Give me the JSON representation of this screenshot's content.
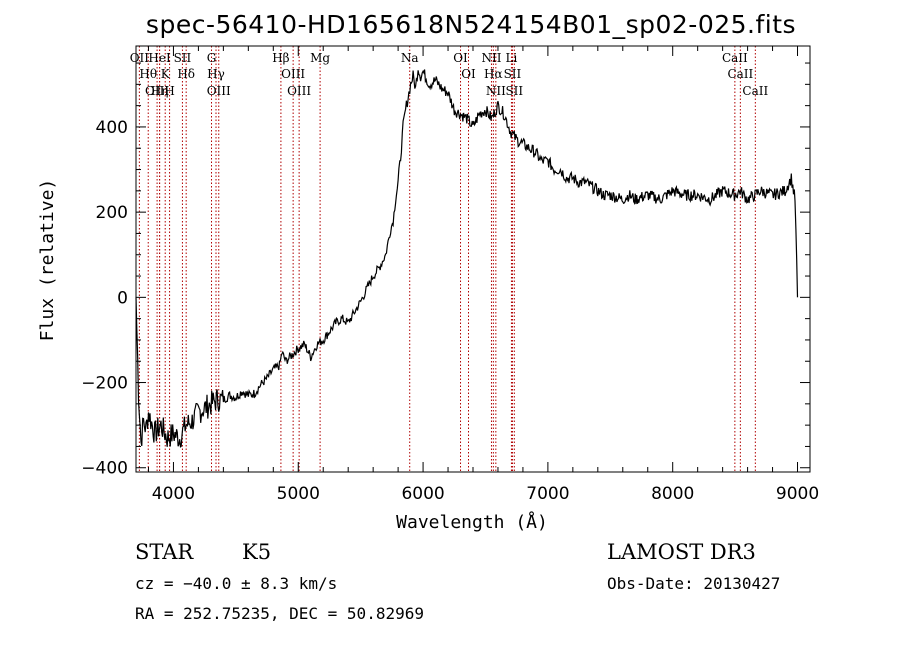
{
  "chart_data": {
    "type": "line",
    "title": "spec-56410-HD165618N524154B01_sp02-025.fits",
    "xlabel": "Wavelength (Å)",
    "ylabel": "Flux (relative)",
    "xlim": [
      3700,
      9100
    ],
    "ylim": [
      -410,
      590
    ],
    "x_ticks": [
      4000,
      5000,
      6000,
      7000,
      8000,
      9000
    ],
    "y_ticks": [
      -400,
      -200,
      0,
      200,
      400
    ],
    "series": [
      {
        "name": "flux",
        "x": [
          3700,
          3720,
          3740,
          3760,
          3780,
          3800,
          3850,
          3900,
          3950,
          4000,
          4050,
          4100,
          4150,
          4200,
          4250,
          4300,
          4350,
          4400,
          4450,
          4500,
          4550,
          4600,
          4650,
          4700,
          4750,
          4800,
          4850,
          4870,
          4900,
          4950,
          5000,
          5050,
          5100,
          5150,
          5200,
          5250,
          5300,
          5350,
          5400,
          5450,
          5500,
          5550,
          5600,
          5650,
          5700,
          5720,
          5740,
          5760,
          5780,
          5800,
          5820,
          5840,
          5860,
          5880,
          5900,
          5920,
          5940,
          5960,
          5980,
          6000,
          6050,
          6100,
          6150,
          6200,
          6250,
          6300,
          6350,
          6400,
          6450,
          6500,
          6550,
          6600,
          6650,
          6700,
          6750,
          6800,
          6850,
          6900,
          6950,
          7000,
          7050,
          7100,
          7150,
          7200,
          7250,
          7300,
          7350,
          7400,
          7450,
          7500,
          7600,
          7650,
          7700,
          7800,
          7900,
          8000,
          8100,
          8200,
          8300,
          8400,
          8500,
          8540,
          8600,
          8660,
          8700,
          8800,
          8900,
          8950,
          8980,
          9000
        ],
        "y": [
          0,
          -220,
          -340,
          -290,
          -310,
          -270,
          -320,
          -300,
          -330,
          -320,
          -330,
          -300,
          -290,
          -270,
          -260,
          -250,
          -240,
          -240,
          -230,
          -235,
          -220,
          -230,
          -225,
          -205,
          -190,
          -170,
          -160,
          -130,
          -150,
          -135,
          -120,
          -110,
          -140,
          -110,
          -100,
          -80,
          -60,
          -50,
          -60,
          -35,
          -10,
          20,
          50,
          70,
          100,
          130,
          160,
          180,
          230,
          270,
          330,
          400,
          440,
          470,
          500,
          520,
          490,
          540,
          520,
          530,
          500,
          510,
          490,
          480,
          440,
          430,
          420,
          400,
          430,
          440,
          420,
          450,
          430,
          390,
          370,
          360,
          350,
          340,
          320,
          320,
          300,
          300,
          280,
          280,
          270,
          270,
          260,
          250,
          240,
          240,
          230,
          240,
          230,
          240,
          230,
          250,
          240,
          240,
          230,
          250,
          240,
          250,
          230,
          240,
          250,
          240,
          250,
          280,
          230,
          0
        ]
      }
    ],
    "spectral_lines": [
      {
        "label": "OII",
        "wavelength": 3727
      },
      {
        "label": "Hθ",
        "wavelength": 3798
      },
      {
        "label": "OIII",
        "wavelength": 3869
      },
      {
        "label": "HeI",
        "wavelength": 3889
      },
      {
        "label": "Hη",
        "wavelength": 3889
      },
      {
        "label": "K",
        "wavelength": 3934
      },
      {
        "label": "H",
        "wavelength": 3969
      },
      {
        "label": "SII",
        "wavelength": 4072
      },
      {
        "label": "Hδ",
        "wavelength": 4102
      },
      {
        "label": "G",
        "wavelength": 4305
      },
      {
        "label": "Hγ",
        "wavelength": 4341
      },
      {
        "label": "OIII",
        "wavelength": 4363
      },
      {
        "label": "Hβ",
        "wavelength": 4861
      },
      {
        "label": "OIII",
        "wavelength": 4959
      },
      {
        "label": "OIII",
        "wavelength": 5007
      },
      {
        "label": "Mg",
        "wavelength": 5175
      },
      {
        "label": "Na",
        "wavelength": 5893
      },
      {
        "label": "OI",
        "wavelength": 6300
      },
      {
        "label": "OI",
        "wavelength": 6364
      },
      {
        "label": "NII",
        "wavelength": 6548
      },
      {
        "label": "Hα",
        "wavelength": 6563
      },
      {
        "label": "NII",
        "wavelength": 6583
      },
      {
        "label": "Li",
        "wavelength": 6708
      },
      {
        "label": "SII",
        "wavelength": 6716
      },
      {
        "label": "SII",
        "wavelength": 6731
      },
      {
        "label": "CaII",
        "wavelength": 8498
      },
      {
        "label": "CaII",
        "wavelength": 8542
      },
      {
        "label": "CaII",
        "wavelength": 8662
      }
    ]
  },
  "info": {
    "class_label": "STAR",
    "subclass": "K5",
    "redshift": "cz = −40.0 ± 8.3 km/s",
    "coordinates": "RA = 252.75235, DEC =  50.82969",
    "survey": "LAMOST DR3",
    "obs_date": "Obs-Date: 20130427"
  },
  "colors": {
    "line_marker": "#b00000",
    "spectrum": "#000000"
  }
}
